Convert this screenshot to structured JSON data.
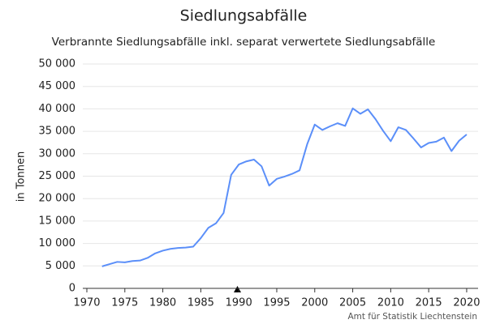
{
  "chart_data": {
    "type": "line",
    "title": "Siedlungsabfälle",
    "subtitle": "Verbrannte Siedlungsabfälle inkl. separat verwertete Siedlungsabfälle",
    "y_label": "in Tonnen",
    "source": "Amt für Statistik Liechtenstein",
    "x": [
      1972,
      1973,
      1974,
      1975,
      1976,
      1977,
      1978,
      1979,
      1980,
      1981,
      1982,
      1983,
      1984,
      1985,
      1986,
      1987,
      1988,
      1989,
      1990,
      1991,
      1992,
      1993,
      1994,
      1995,
      1996,
      1997,
      1998,
      1999,
      2000,
      2001,
      2002,
      2003,
      2004,
      2005,
      2006,
      2007,
      2008,
      2009,
      2010,
      2011,
      2012,
      2013,
      2014,
      2015,
      2016,
      2017,
      2018,
      2019,
      2020
    ],
    "series": [
      {
        "name": "Siedlungsabfälle",
        "color": "#5b8ff9",
        "values": [
          4900,
          5400,
          5900,
          5800,
          6100,
          6200,
          6800,
          7800,
          8400,
          8800,
          9000,
          9100,
          9300,
          11200,
          13500,
          14500,
          16800,
          25300,
          27600,
          28300,
          28700,
          27200,
          22900,
          24400,
          24900,
          25500,
          26300,
          32100,
          36500,
          35300,
          36100,
          36800,
          36200,
          40100,
          38900,
          39900,
          37700,
          35100,
          32800,
          35900,
          35300,
          33400,
          31400,
          32400,
          32700,
          33600,
          30600,
          32900,
          34300
        ]
      }
    ],
    "xlim": [
      1970,
      2021.5
    ],
    "xticks": [
      1970,
      1975,
      1980,
      1985,
      1990,
      1995,
      2000,
      2005,
      2010,
      2015,
      2020
    ],
    "ylim": [
      0,
      50000
    ],
    "yticks": [
      0,
      {
        "value": 5000,
        "label": "5 000"
      },
      {
        "value": 10000,
        "label": "10 000"
      },
      {
        "value": 15000,
        "label": "15 000"
      },
      {
        "value": 20000,
        "label": "20 000"
      },
      {
        "value": 25000,
        "label": "25 000"
      },
      {
        "value": 30000,
        "label": "30 000"
      },
      {
        "value": 35000,
        "label": "35 000"
      },
      {
        "value": 40000,
        "label": "40 000"
      },
      {
        "value": 45000,
        "label": "45 000"
      },
      {
        "value": 50000,
        "label": "50 000"
      }
    ],
    "grid": true
  }
}
